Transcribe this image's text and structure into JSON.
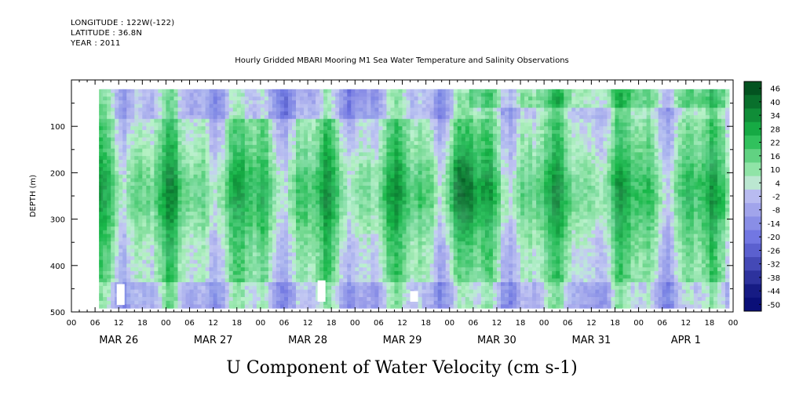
{
  "header": {
    "longitude": "LONGITUDE : 122W(-122)",
    "latitude": "LATITUDE : 36.8N",
    "year": "YEAR : 2011"
  },
  "chart_data": {
    "type": "heatmap",
    "title": "Hourly Gridded MBARI Mooring M1 Sea Water Temperature and Salinity Observations",
    "xlabel": "U Component of Water Velocity (cm s-1)",
    "ylabel": "DEPTH (m)",
    "ylim": [
      500,
      0
    ],
    "y_ticks": [
      100,
      200,
      300,
      400,
      500
    ],
    "x_range_hours": [
      0,
      168
    ],
    "hour_ticks": [
      "00",
      "06",
      "12",
      "18",
      "00",
      "06",
      "12",
      "18",
      "00",
      "06",
      "12",
      "18",
      "00",
      "06",
      "12",
      "18",
      "00",
      "06",
      "12",
      "18",
      "00",
      "06",
      "12",
      "18",
      "00",
      "06",
      "12",
      "18",
      "00"
    ],
    "day_labels": [
      "MAR 26",
      "MAR 27",
      "MAR 28",
      "MAR 29",
      "MAR 30",
      "MAR 31",
      "APR  1"
    ],
    "data_hours": [
      7,
      167
    ],
    "data_depths": [
      20,
      485
    ],
    "colorbar": {
      "levels": [
        "46",
        "40",
        "34",
        "28",
        "22",
        "16",
        "10",
        "4",
        "-2",
        "-8",
        "-14",
        "-20",
        "-26",
        "-32",
        "-38",
        "-44",
        "-50"
      ],
      "min": -50,
      "max": 46
    },
    "colors": {
      "positive_dark": "#00451a",
      "positive_mid": "#19b84a",
      "positive_light": "#b8f2c6",
      "negative_light": "#c4c6f2",
      "negative_mid": "#6a70e0",
      "negative_dark": "#0a0f78"
    }
  }
}
